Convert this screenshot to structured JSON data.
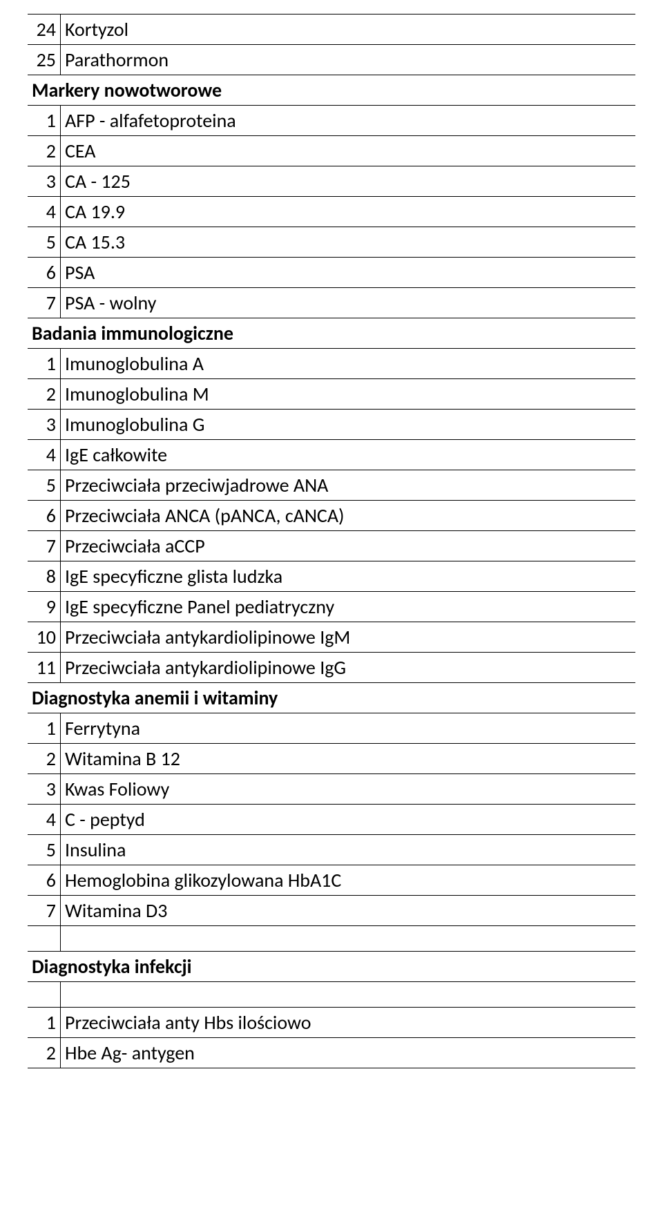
{
  "initial_rows": [
    {
      "num": "24",
      "label": "Kortyzol"
    },
    {
      "num": "25",
      "label": "Parathormon"
    }
  ],
  "sections": [
    {
      "title": "Markery nowotworowe",
      "rows": [
        {
          "num": "1",
          "label": "AFP - alfafetoproteina"
        },
        {
          "num": "2",
          "label": "CEA"
        },
        {
          "num": "3",
          "label": "CA - 125"
        },
        {
          "num": "4",
          "label": "CA 19.9"
        },
        {
          "num": "5",
          "label": "CA 15.3"
        },
        {
          "num": "6",
          "label": "PSA"
        },
        {
          "num": "7",
          "label": "PSA - wolny"
        }
      ]
    },
    {
      "title": "Badania immunologiczne",
      "rows": [
        {
          "num": "1",
          "label": "Imunoglobulina A"
        },
        {
          "num": "2",
          "label": "Imunoglobulina M"
        },
        {
          "num": "3",
          "label": "Imunoglobulina G"
        },
        {
          "num": "4",
          "label": "IgE całkowite"
        },
        {
          "num": "5",
          "label": "Przeciwciała przeciwjadrowe ANA"
        },
        {
          "num": "6",
          "label": "Przeciwciała ANCA (pANCA, cANCA)"
        },
        {
          "num": "7",
          "label": "Przeciwciała aCCP"
        },
        {
          "num": "8",
          "label": "IgE specyficzne glista ludzka"
        },
        {
          "num": "9",
          "label": "IgE specyficzne Panel pediatryczny"
        },
        {
          "num": "10",
          "label": "Przeciwciała antykardiolipinowe IgM"
        },
        {
          "num": "11",
          "label": "Przeciwciała antykardiolipinowe IgG"
        }
      ]
    },
    {
      "title": "Diagnostyka anemii i witaminy",
      "rows": [
        {
          "num": "1",
          "label": "Ferrytyna"
        },
        {
          "num": "2",
          "label": "Witamina B 12"
        },
        {
          "num": "3",
          "label": "Kwas Foliowy"
        },
        {
          "num": "4",
          "label": "C - peptyd"
        },
        {
          "num": "5",
          "label": "Insulina"
        },
        {
          "num": "6",
          "label": "Hemoglobina glikozylowana HbA1C"
        },
        {
          "num": "7",
          "label": "Witamina D3"
        }
      ],
      "trailing_spacer": true
    },
    {
      "title": "Diagnostyka infekcji",
      "leading_spacer": true,
      "rows": [
        {
          "num": "1",
          "label": "Przeciwciała anty Hbs ilościowo"
        },
        {
          "num": "2",
          "label": "Hbe Ag- antygen"
        }
      ]
    }
  ]
}
